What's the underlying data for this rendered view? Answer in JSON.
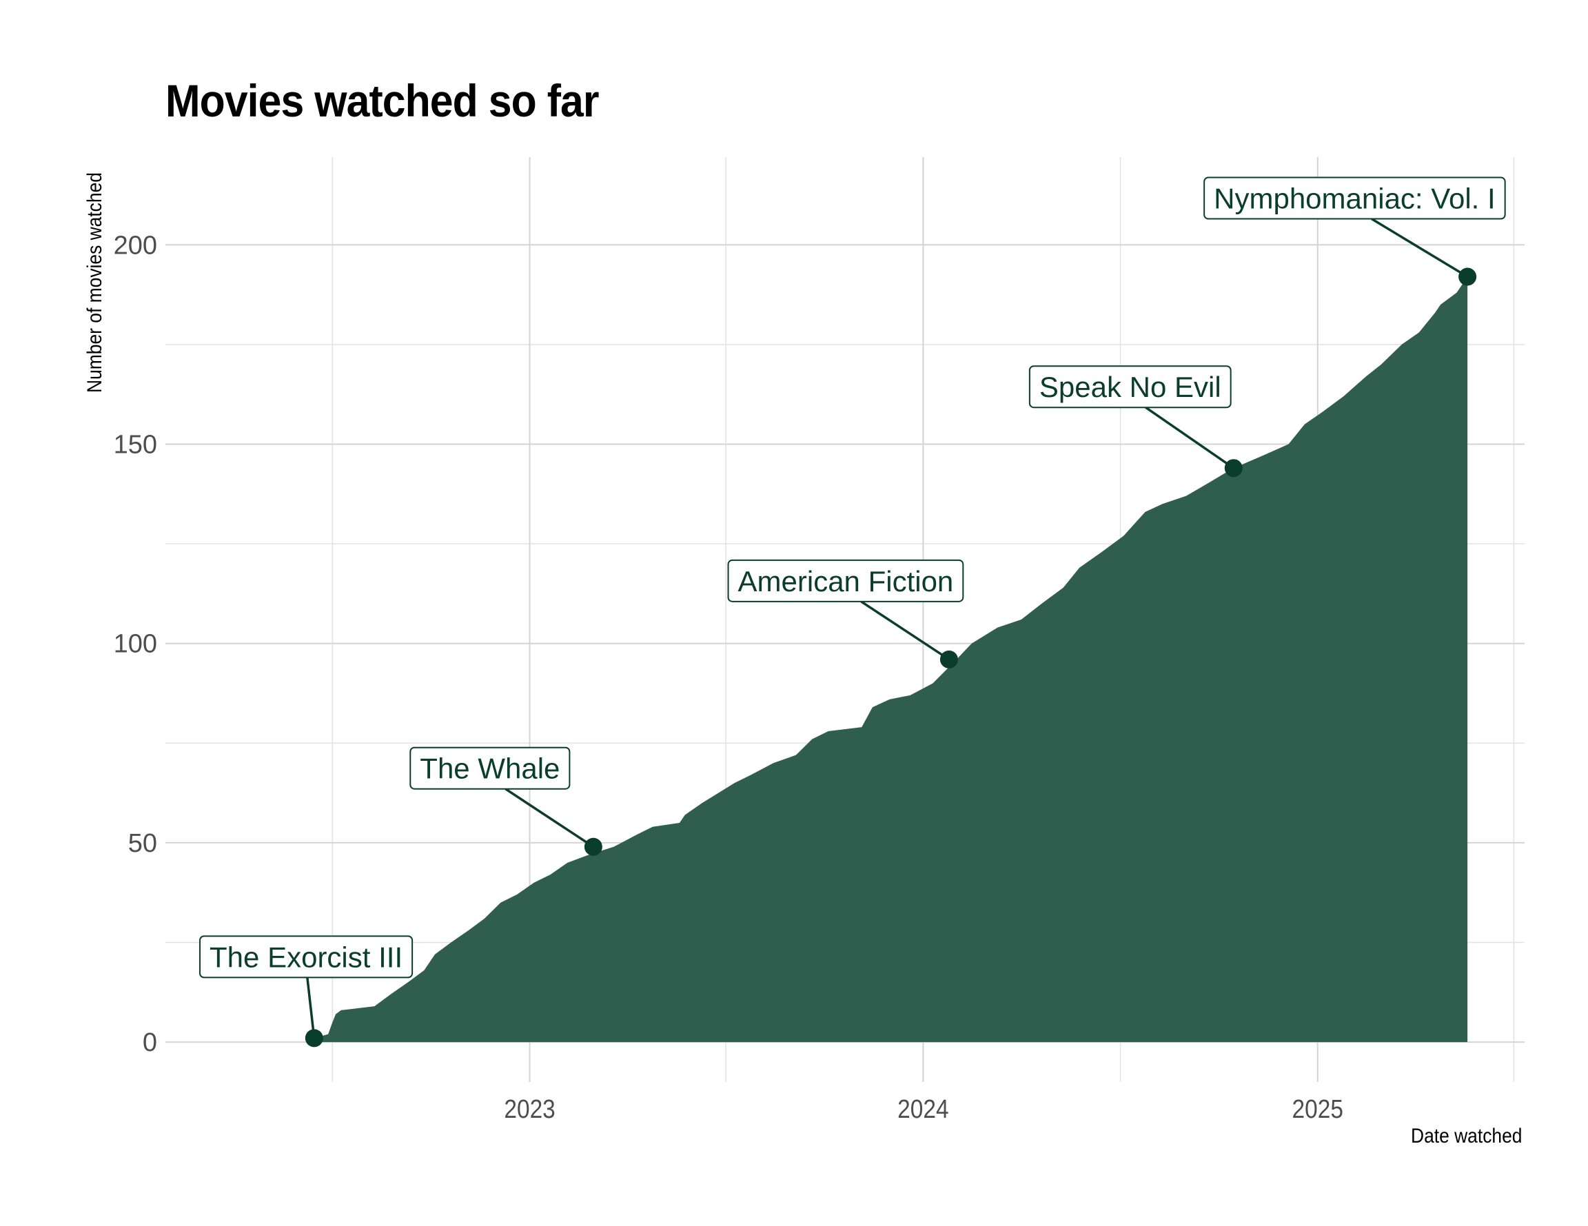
{
  "chart_data": {
    "type": "area",
    "title": "Movies watched so far",
    "xlabel": "Date watched",
    "ylabel": "Number of movies watched",
    "x_ticks": [
      "2023",
      "2024",
      "2025"
    ],
    "y_ticks": [
      0,
      50,
      100,
      150,
      200
    ],
    "xlim": [
      "2022-01-28",
      "2025-07-12"
    ],
    "ylim": [
      -10,
      222
    ],
    "grid": true,
    "fill_color": "#2f5e4e",
    "point_color": "#0b3d2c",
    "series": [
      {
        "x": [
          "2022-06-15",
          "2022-06-28",
          "2022-07-02",
          "2022-07-05",
          "2022-07-10",
          "2022-08-10",
          "2022-08-25",
          "2022-09-10",
          "2022-09-25",
          "2022-10-05",
          "2022-10-20",
          "2022-11-05",
          "2022-11-20",
          "2022-12-05",
          "2022-12-20",
          "2023-01-05",
          "2023-01-20",
          "2023-02-05",
          "2023-02-25",
          "2023-03-20",
          "2023-04-10",
          "2023-04-25",
          "2023-05-20",
          "2023-05-25",
          "2023-06-10",
          "2023-07-10",
          "2023-07-25",
          "2023-08-15",
          "2023-09-05",
          "2023-09-20",
          "2023-10-05",
          "2023-11-05",
          "2023-11-15",
          "2023-12-01",
          "2023-12-20",
          "2024-01-10",
          "2024-02-01",
          "2024-02-15",
          "2024-03-10",
          "2024-04-01",
          "2024-04-20",
          "2024-05-10",
          "2024-05-25",
          "2024-06-15",
          "2024-07-05",
          "2024-07-25",
          "2024-08-10",
          "2024-09-01",
          "2024-09-20",
          "2024-10-15",
          "2024-11-10",
          "2024-12-05",
          "2024-12-20",
          "2025-01-05",
          "2025-01-25",
          "2025-02-15",
          "2025-03-01",
          "2025-03-20",
          "2025-04-05",
          "2025-04-20",
          "2025-04-25",
          "2025-05-10",
          "2025-05-20"
        ],
        "y": [
          1,
          2,
          5,
          7,
          8,
          9,
          12,
          15,
          18,
          22,
          25,
          28,
          31,
          35,
          37,
          40,
          42,
          45,
          47,
          49,
          52,
          54,
          55,
          57,
          60,
          65,
          67,
          70,
          72,
          76,
          78,
          79,
          84,
          86,
          87,
          90,
          96,
          100,
          104,
          106,
          110,
          114,
          119,
          123,
          127,
          133,
          135,
          137,
          140,
          144,
          147,
          150,
          155,
          158,
          162,
          167,
          170,
          175,
          178,
          183,
          185,
          188,
          192
        ]
      }
    ],
    "annotations": [
      {
        "label": "The Exorcist III",
        "x": "2022-06-15",
        "y": 1
      },
      {
        "label": "The Whale",
        "x": "2023-03-01",
        "y": 49
      },
      {
        "label": "American Fiction",
        "x": "2024-01-25",
        "y": 96
      },
      {
        "label": "Speak No Evil",
        "x": "2024-10-15",
        "y": 144
      },
      {
        "label": "Nymphomaniac: Vol. I",
        "x": "2025-05-20",
        "y": 192
      }
    ]
  }
}
